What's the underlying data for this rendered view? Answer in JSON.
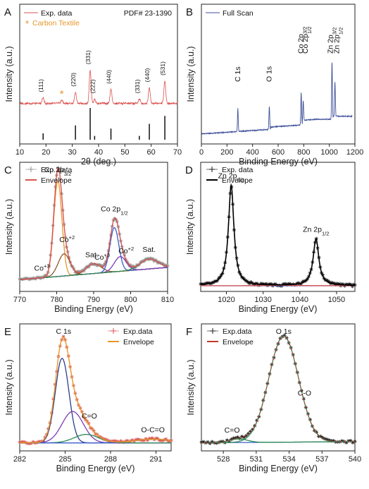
{
  "chart_data": [
    {
      "id": "A",
      "panel_label": "A",
      "type": "line",
      "xlabel": "2θ (deg.)",
      "ylabel": "Intensity (a.u.)",
      "xlim": [
        10,
        70
      ],
      "xticks": [
        "10",
        "20",
        "30",
        "40",
        "50",
        "60",
        "70"
      ],
      "legend": [
        "Exp. data"
      ],
      "legend_position": "top-left",
      "pdf_label": "PDF# 23-1390",
      "marker_note": {
        "symbol": "*",
        "text": "Carbon Textile",
        "color": "#e8962a"
      },
      "colors": {
        "exp": "#d9534f",
        "ref": "#000000"
      },
      "peaks": [
        {
          "x": 18.9,
          "h": 0.1,
          "label": "(111)"
        },
        {
          "x": 26.0,
          "h": 0.06,
          "label": "*"
        },
        {
          "x": 31.2,
          "h": 0.2,
          "label": "(220)"
        },
        {
          "x": 36.8,
          "h": 0.6,
          "label": "(331)"
        },
        {
          "x": 38.5,
          "h": 0.08,
          "label": "(222)"
        },
        {
          "x": 44.7,
          "h": 0.25,
          "label": "(440)"
        },
        {
          "x": 55.5,
          "h": 0.08,
          "label": "(331)"
        },
        {
          "x": 59.3,
          "h": 0.28,
          "label": "(440)"
        },
        {
          "x": 65.2,
          "h": 0.4,
          "label": "(531)"
        }
      ],
      "reference_lines": [
        {
          "x": 18.9,
          "h": 0.2
        },
        {
          "x": 31.2,
          "h": 0.45
        },
        {
          "x": 36.8,
          "h": 1.0
        },
        {
          "x": 38.5,
          "h": 0.12
        },
        {
          "x": 44.7,
          "h": 0.35
        },
        {
          "x": 55.5,
          "h": 0.12
        },
        {
          "x": 59.3,
          "h": 0.5
        },
        {
          "x": 65.2,
          "h": 0.75
        }
      ]
    },
    {
      "id": "B",
      "panel_label": "B",
      "type": "line",
      "xlabel": "Binding Energy (eV)",
      "ylabel": "Intensity (a.u.)",
      "xlim": [
        0,
        1200
      ],
      "xticks": [
        "0",
        "200",
        "400",
        "600",
        "800",
        "1000",
        "1200"
      ],
      "legend": [
        "Full Scan"
      ],
      "legend_position": "top-left",
      "colors": {
        "line": "#3d4f9a"
      },
      "peaks": [
        {
          "x": 285,
          "h": 0.3,
          "w": 3,
          "label": "C 1s"
        },
        {
          "x": 531,
          "h": 0.3,
          "w": 3,
          "label": "O 1s"
        },
        {
          "x": 780,
          "h": 0.42,
          "w": 3,
          "label": "Co 2p3/2"
        },
        {
          "x": 796,
          "h": 0.25,
          "w": 3,
          "label": "Co 2p1/2"
        },
        {
          "x": 1021,
          "h": 0.75,
          "w": 3,
          "label": "Zn 2p3/2"
        },
        {
          "x": 1044,
          "h": 0.45,
          "w": 3,
          "label": "Zn 2p1/2"
        }
      ],
      "annotations": [
        {
          "x": 285,
          "base": "C 1s",
          "sub": ""
        },
        {
          "x": 531,
          "base": "O 1s",
          "sub": ""
        },
        {
          "x": 780,
          "base": "Co 2p",
          "sub": "3/2"
        },
        {
          "x": 815,
          "base": "Co 2p",
          "sub": "1/2"
        },
        {
          "x": 1010,
          "base": "Zn 2p",
          "sub": "3/2"
        },
        {
          "x": 1060,
          "base": "Zn 2p",
          "sub": "1/2"
        }
      ]
    },
    {
      "id": "C",
      "panel_label": "C",
      "type": "line",
      "xlabel": "Binding Energy (eV)",
      "ylabel": "Intensity (a.u.)",
      "xlim": [
        770,
        810
      ],
      "xticks": [
        "770",
        "780",
        "790",
        "800",
        "810"
      ],
      "legend": [
        "Exp. data",
        "Envelope"
      ],
      "legend_position": "top-left",
      "colors": {
        "exp": "#8f8f8f",
        "envelope": "#d9534f",
        "background": "#6b2a2a",
        "c1": "#e8962a",
        "c2": "#8b5a2b",
        "c3": "#3a5fcd",
        "c4": "#7d3cb5",
        "c5": "#2e8b57"
      },
      "background": {
        "start": 0.05,
        "end": 0.15
      },
      "components": [
        {
          "center": 780.3,
          "h": 0.78,
          "w": 1.1,
          "color": "c1"
        },
        {
          "center": 782.0,
          "h": 0.18,
          "w": 1.6,
          "color": "c2"
        },
        {
          "center": 790.0,
          "h": 0.08,
          "w": 2.0,
          "color": "c2"
        },
        {
          "center": 795.6,
          "h": 0.36,
          "w": 1.2,
          "color": "c3"
        },
        {
          "center": 797.2,
          "h": 0.12,
          "w": 1.6,
          "color": "c4"
        },
        {
          "center": 805.0,
          "h": 0.08,
          "w": 2.4,
          "color": "c5"
        }
      ],
      "annotations": [
        {
          "x": 780.3,
          "text": "Co 2p",
          "sub": "3/2"
        },
        {
          "x": 776.0,
          "text": "Co",
          "sup": "+3"
        },
        {
          "x": 782.8,
          "text": "Co",
          "sup": "+2"
        },
        {
          "x": 789.5,
          "text": "Sat."
        },
        {
          "x": 795.6,
          "text": "Co 2p",
          "sub": "1/2"
        },
        {
          "x": 792.3,
          "text": "Co",
          "sup": "+3"
        },
        {
          "x": 798.8,
          "text": "Co",
          "sup": "+2"
        },
        {
          "x": 805.0,
          "text": "Sat."
        }
      ]
    },
    {
      "id": "D",
      "panel_label": "D",
      "type": "line",
      "xlabel": "Binding Energy (eV)",
      "ylabel": "Intensity (a.u.)",
      "xlim": [
        1013,
        1055
      ],
      "xticks": [
        "1020",
        "1030",
        "1040",
        "1050"
      ],
      "legend": [
        "Exp. data",
        "Envelope"
      ],
      "legend_position": "top-left",
      "colors": {
        "exp": "#1a1a1a",
        "envelope": "#000000",
        "fit": "#d9534f",
        "background": "#3a5fcd"
      },
      "components": [
        {
          "center": 1021.3,
          "h": 0.82,
          "w": 0.9
        },
        {
          "center": 1044.4,
          "h": 0.38,
          "w": 0.95
        }
      ],
      "annotations": [
        {
          "x": 1021.3,
          "text": "Zn 2p",
          "sub": "3/2"
        },
        {
          "x": 1044.4,
          "text": "Zn 2p",
          "sub": "1/2"
        }
      ]
    },
    {
      "id": "E",
      "panel_label": "E",
      "type": "line",
      "xlabel": "Binding Energy (eV)",
      "ylabel": "Intensity (a.u.)",
      "xlim": [
        282,
        292
      ],
      "xticks": [
        "282",
        "285",
        "288",
        "291"
      ],
      "legend": [
        "Exp.data",
        "Envelope"
      ],
      "legend_position": "top-right",
      "colors": {
        "exp": "#d9534f",
        "envelope": "#e8962a",
        "c1": "#2c3e8a",
        "c2": "#7d3cb5",
        "c3": "#2e8b57",
        "c4": "#3a5fcd"
      },
      "background": {
        "start": 0.02,
        "end": 0.02
      },
      "components": [
        {
          "center": 284.8,
          "h": 0.7,
          "w": 0.45,
          "color": "c1"
        },
        {
          "center": 285.5,
          "h": 0.26,
          "w": 0.7,
          "color": "c2"
        },
        {
          "center": 286.4,
          "h": 0.07,
          "w": 0.8,
          "color": "c3"
        },
        {
          "center": 290.8,
          "h": 0.03,
          "w": 1.2,
          "color": "c4"
        }
      ],
      "annotations": [
        {
          "x": 284.9,
          "text": "C 1s"
        },
        {
          "x": 286.6,
          "text": "C=O"
        },
        {
          "x": 290.8,
          "text": "O-C=O"
        }
      ]
    },
    {
      "id": "F",
      "panel_label": "F",
      "type": "line",
      "xlabel": "Binding Energy (eV)",
      "ylabel": "Intensity (a.u.)",
      "xlim": [
        526,
        540
      ],
      "xticks": [
        "528",
        "531",
        "534",
        "537",
        "540"
      ],
      "legend": [
        "Exp.data",
        "Envelope"
      ],
      "legend_position": "top-left",
      "colors": {
        "exp": "#1a1a1a",
        "envelope": "#c0392b",
        "fit": "#2e8b57",
        "background": "#3a5fcd"
      },
      "background": {
        "start": 0.02,
        "end": 0.03
      },
      "components": [
        {
          "center": 533.5,
          "h": 0.88,
          "w": 1.35
        },
        {
          "center": 529.4,
          "h": 0.03,
          "w": 0.8
        }
      ],
      "annotations": [
        {
          "x": 533.5,
          "text": "O 1s"
        },
        {
          "x": 535.4,
          "text": "C-O"
        },
        {
          "x": 528.8,
          "text": "C=O"
        }
      ]
    }
  ]
}
